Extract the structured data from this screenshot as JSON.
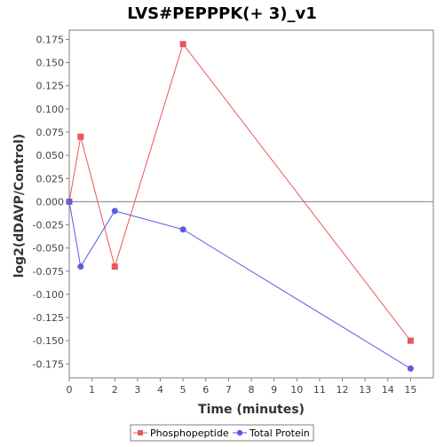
{
  "chart_data": {
    "type": "line",
    "title": "LVS#PEPPPK(+ 3)_v1",
    "xlabel": "Time (minutes)",
    "ylabel": "log2(dDAVP/Control)",
    "xlim": [
      0,
      16
    ],
    "ylim": [
      -0.19,
      0.185
    ],
    "x_ticks": [
      0,
      1,
      2,
      3,
      4,
      5,
      6,
      7,
      8,
      9,
      10,
      11,
      12,
      13,
      14,
      15
    ],
    "y_ticks": [
      -0.175,
      -0.15,
      -0.125,
      -0.1,
      -0.075,
      -0.05,
      -0.025,
      0.0,
      0.025,
      0.05,
      0.075,
      0.1,
      0.125,
      0.15,
      0.175
    ],
    "y_tick_labels": [
      "-0.175",
      "-0.150",
      "-0.125",
      "-0.100",
      "-0.075",
      "-0.050",
      "-0.025",
      "0.000",
      "0.025",
      "0.050",
      "0.075",
      "0.100",
      "0.125",
      "0.150",
      "0.175"
    ],
    "zero_line": true,
    "grid": false,
    "legend_position": "bottom",
    "series": [
      {
        "name": "Phosphopeptide",
        "color": "#e8575a",
        "marker": "square",
        "points": [
          [
            0,
            0.0
          ],
          [
            0.5,
            0.07
          ],
          [
            2,
            -0.07
          ],
          [
            5,
            0.17
          ],
          [
            15,
            -0.15
          ]
        ]
      },
      {
        "name": "Total Protein",
        "color": "#5a5ae8",
        "marker": "circle",
        "points": [
          [
            0,
            0.0
          ],
          [
            0.5,
            -0.07
          ],
          [
            2,
            -0.01
          ],
          [
            5,
            -0.03
          ],
          [
            15,
            -0.18
          ]
        ]
      }
    ]
  }
}
